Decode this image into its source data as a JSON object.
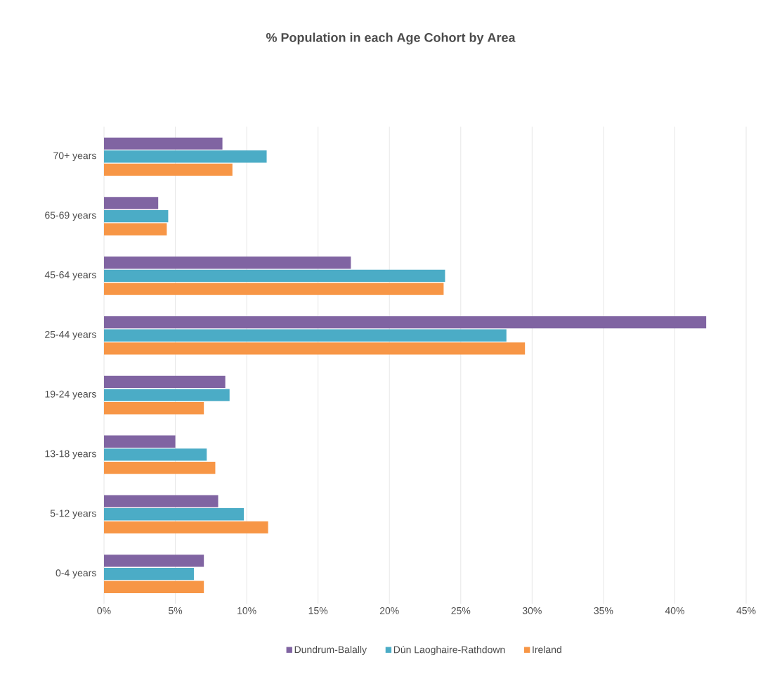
{
  "chart_data": {
    "type": "bar",
    "orientation": "horizontal",
    "title": "% Population in each Age Cohort by Area",
    "categories": [
      "70+ years",
      "65-69 years",
      "45-64 years",
      "25-44 years",
      "19-24 years",
      "13-18 years",
      "5-12 years",
      "0-4 years"
    ],
    "series": [
      {
        "name": "Dundrum-Balally",
        "color": "#8064a2",
        "values": [
          8.3,
          3.8,
          17.3,
          42.2,
          8.5,
          5.0,
          8.0,
          7.0
        ]
      },
      {
        "name": "Dún Laoghaire-Rathdown",
        "color": "#4bacc6",
        "values": [
          11.4,
          4.5,
          23.9,
          28.2,
          8.8,
          7.2,
          9.8,
          6.3
        ]
      },
      {
        "name": "Ireland",
        "color": "#f79646",
        "values": [
          9.0,
          4.4,
          23.8,
          29.5,
          7.0,
          7.8,
          11.5,
          7.0
        ]
      }
    ],
    "xlim": [
      0,
      45
    ],
    "xticks": [
      {
        "value": 0,
        "label": "0%"
      },
      {
        "value": 5,
        "label": "5%"
      },
      {
        "value": 10,
        "label": "10%"
      },
      {
        "value": 15,
        "label": "15%"
      },
      {
        "value": 20,
        "label": "20%"
      },
      {
        "value": 25,
        "label": "25%"
      },
      {
        "value": 30,
        "label": "30%"
      },
      {
        "value": 35,
        "label": "35%"
      },
      {
        "value": 40,
        "label": "40%"
      },
      {
        "value": 45,
        "label": "45%"
      }
    ],
    "grid": "x",
    "legend": "bottom"
  }
}
